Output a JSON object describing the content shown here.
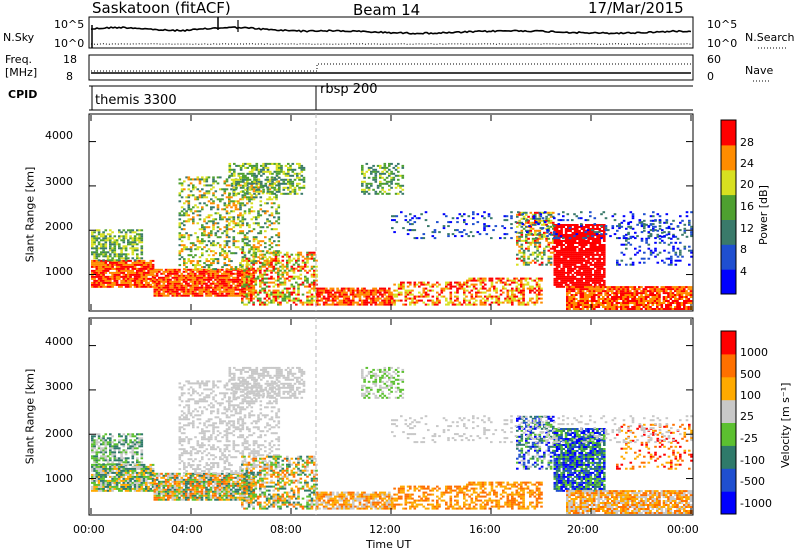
{
  "header": {
    "station": "Saskatoon (fitACF)",
    "beam": "Beam 14",
    "date": "17/Mar/2015"
  },
  "noise_panel": {
    "left_label": "N.Sky",
    "right_label": "N.Search",
    "left_ticks": [
      "10^5",
      "10^0"
    ],
    "right_ticks": [
      "10^5",
      "10^0"
    ]
  },
  "freq_panel": {
    "left_label_1": "Freq.",
    "left_label_2": "[MHz]",
    "right_label": "Nave",
    "left_ticks": [
      "18",
      "8"
    ],
    "right_ticks": [
      "60",
      "0"
    ]
  },
  "cpid": {
    "label": "CPID",
    "segments": [
      "themis 3300",
      "rbsp 200"
    ]
  },
  "chart_data": [
    {
      "type": "heatmap",
      "name": "power",
      "ylabel": "Slant Range [km]",
      "ylim": [
        200,
        4600
      ],
      "yticks": [
        "1000",
        "2000",
        "3000",
        "4000"
      ],
      "colorbar_label": "Power [dB]",
      "colorbar_ticks": [
        "28",
        "24",
        "20",
        "16",
        "12",
        "8",
        "4"
      ],
      "colors": [
        "#0000ff",
        "#1f4fd0",
        "#3a7a6a",
        "#4ea030",
        "#d8e020",
        "#ff8c00",
        "#ff0000"
      ]
    },
    {
      "type": "heatmap",
      "name": "velocity",
      "ylabel": "Slant Range [km]",
      "ylim": [
        200,
        4600
      ],
      "yticks": [
        "1000",
        "2000",
        "3000",
        "4000"
      ],
      "colorbar_label": "Velocity [m s⁻¹]",
      "colorbar_ticks": [
        "1000",
        "500",
        "100",
        "25",
        "-25",
        "-100",
        "-500",
        "-1000"
      ],
      "colors": [
        "#0000ff",
        "#1f4fd0",
        "#2f7a6a",
        "#5cc030",
        "#c8c8c8",
        "#ffaa00",
        "#ff7000",
        "#ff0000"
      ],
      "xlabel": "Time UT",
      "xticks": [
        "00:00",
        "04:00",
        "08:00",
        "12:00",
        "16:00",
        "20:00",
        "00:00"
      ]
    }
  ]
}
